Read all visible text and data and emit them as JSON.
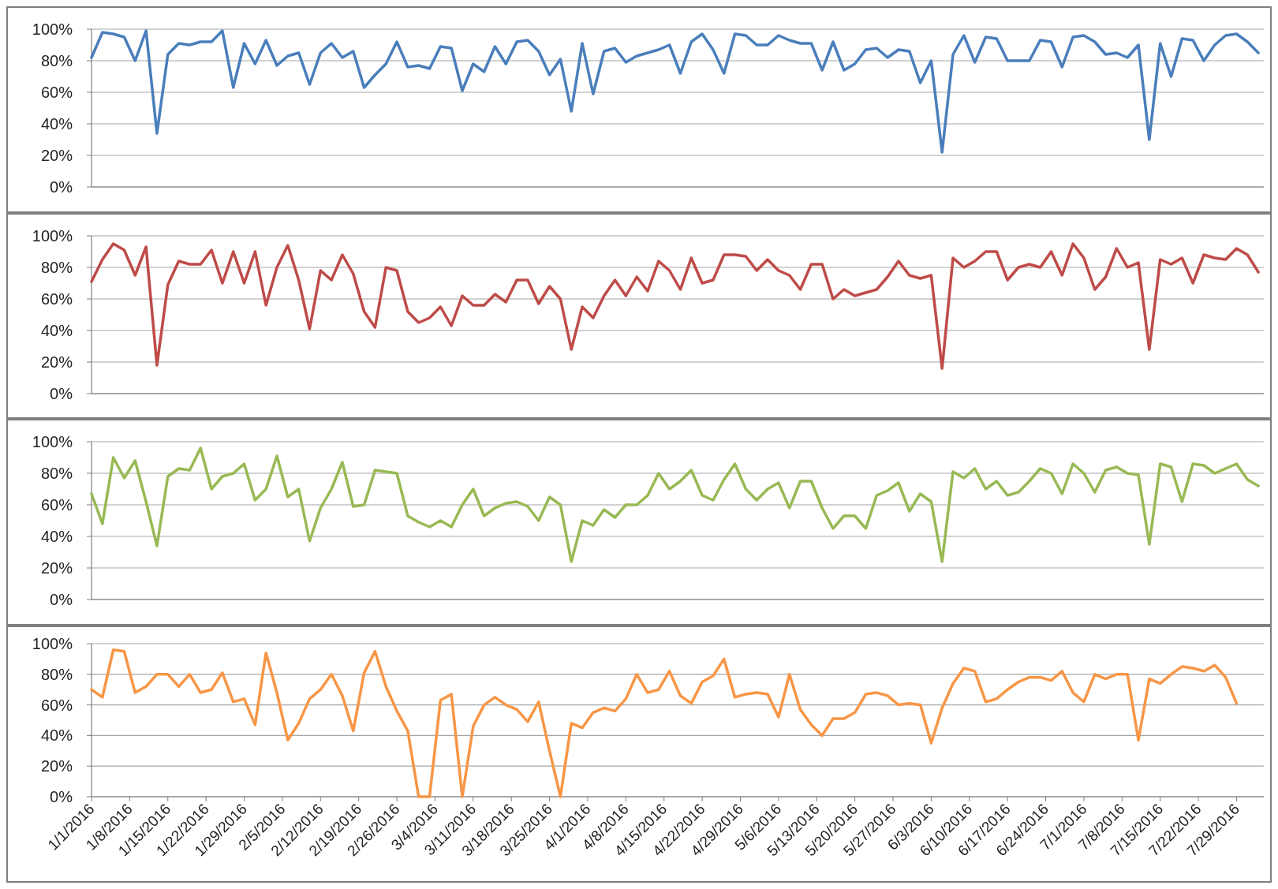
{
  "chart_data": [
    {
      "type": "line",
      "x": [
        "2016-01-01",
        "2016-01-03",
        "2016-01-05",
        "2016-01-07",
        "2016-01-09",
        "2016-01-11",
        "2016-01-13",
        "2016-01-15",
        "2016-01-17",
        "2016-01-19",
        "2016-01-21",
        "2016-01-23",
        "2016-01-25",
        "2016-01-27",
        "2016-01-29",
        "2016-01-31",
        "2016-02-02",
        "2016-02-04",
        "2016-02-06",
        "2016-02-08",
        "2016-02-10",
        "2016-02-12",
        "2016-02-14",
        "2016-02-16",
        "2016-02-18",
        "2016-02-20",
        "2016-02-22",
        "2016-02-24",
        "2016-02-26",
        "2016-02-28",
        "2016-03-01",
        "2016-03-03",
        "2016-03-05",
        "2016-03-07",
        "2016-03-09",
        "2016-03-11",
        "2016-03-13",
        "2016-03-15",
        "2016-03-17",
        "2016-03-19",
        "2016-03-21",
        "2016-03-23",
        "2016-03-25",
        "2016-03-27",
        "2016-03-29",
        "2016-03-31",
        "2016-04-02",
        "2016-04-04",
        "2016-04-06",
        "2016-04-08",
        "2016-04-10",
        "2016-04-12",
        "2016-04-14",
        "2016-04-16",
        "2016-04-18",
        "2016-04-20",
        "2016-04-22",
        "2016-04-24",
        "2016-04-26",
        "2016-04-28",
        "2016-04-30",
        "2016-05-02",
        "2016-05-04",
        "2016-05-06",
        "2016-05-08",
        "2016-05-10",
        "2016-05-12",
        "2016-05-14",
        "2016-05-16",
        "2016-05-18",
        "2016-05-20",
        "2016-05-22",
        "2016-05-24",
        "2016-05-26",
        "2016-05-28",
        "2016-05-30",
        "2016-06-01",
        "2016-06-03",
        "2016-06-05",
        "2016-06-07",
        "2016-06-09",
        "2016-06-11",
        "2016-06-13",
        "2016-06-15",
        "2016-06-17",
        "2016-06-19",
        "2016-06-21",
        "2016-06-23",
        "2016-06-25",
        "2016-06-27",
        "2016-06-29",
        "2016-07-01",
        "2016-07-03",
        "2016-07-05",
        "2016-07-07",
        "2016-07-09",
        "2016-07-11",
        "2016-07-13",
        "2016-07-15",
        "2016-07-17",
        "2016-07-19",
        "2016-07-21",
        "2016-07-23",
        "2016-07-25",
        "2016-07-27",
        "2016-07-29",
        "2016-07-31",
        "2016-08-02"
      ],
      "series": [
        {
          "color": "#4a7ebb",
          "values": [
            82,
            98,
            97,
            95,
            80,
            99,
            34,
            84,
            91,
            90,
            92,
            92,
            99,
            63,
            91,
            78,
            93,
            77,
            83,
            85,
            65,
            85,
            91,
            82,
            86,
            63,
            71,
            78,
            92,
            76,
            77,
            75,
            89,
            88,
            61,
            78,
            73,
            89,
            78,
            92,
            93,
            86,
            71,
            81,
            48,
            91,
            59,
            86,
            88,
            79,
            83,
            85,
            87,
            90,
            72,
            92,
            97,
            87,
            72,
            97,
            96,
            90,
            90,
            96,
            93,
            91,
            91,
            74,
            92,
            74,
            78,
            87,
            88,
            82,
            87,
            86,
            66,
            80,
            22,
            84,
            96,
            79,
            95,
            94,
            80,
            80,
            80,
            93,
            92,
            76,
            95,
            96,
            92,
            84,
            85,
            82,
            90,
            30,
            91,
            70,
            94,
            93,
            80,
            90,
            96,
            97,
            92,
            85
          ]
        }
      ],
      "xlim": [
        "2016-01-01",
        "2016-08-03"
      ],
      "ylim": [
        0,
        100
      ],
      "yticks": [
        {
          "value": 0,
          "label": "0%"
        },
        {
          "value": 20,
          "label": "20%"
        },
        {
          "value": 40,
          "label": "40%"
        },
        {
          "value": 60,
          "label": "60%"
        },
        {
          "value": 80,
          "label": "80%"
        },
        {
          "value": 100,
          "label": "100%"
        }
      ],
      "grid": "y",
      "tick_labels": "y"
    },
    {
      "type": "line",
      "x": [
        "2016-01-01",
        "2016-01-03",
        "2016-01-05",
        "2016-01-07",
        "2016-01-09",
        "2016-01-11",
        "2016-01-13",
        "2016-01-15",
        "2016-01-17",
        "2016-01-19",
        "2016-01-21",
        "2016-01-23",
        "2016-01-25",
        "2016-01-27",
        "2016-01-29",
        "2016-01-31",
        "2016-02-02",
        "2016-02-04",
        "2016-02-06",
        "2016-02-08",
        "2016-02-10",
        "2016-02-12",
        "2016-02-14",
        "2016-02-16",
        "2016-02-18",
        "2016-02-20",
        "2016-02-22",
        "2016-02-24",
        "2016-02-26",
        "2016-02-28",
        "2016-03-01",
        "2016-03-03",
        "2016-03-05",
        "2016-03-07",
        "2016-03-09",
        "2016-03-11",
        "2016-03-13",
        "2016-03-15",
        "2016-03-17",
        "2016-03-19",
        "2016-03-21",
        "2016-03-23",
        "2016-03-25",
        "2016-03-27",
        "2016-03-29",
        "2016-03-31",
        "2016-04-02",
        "2016-04-04",
        "2016-04-06",
        "2016-04-08",
        "2016-04-10",
        "2016-04-12",
        "2016-04-14",
        "2016-04-16",
        "2016-04-18",
        "2016-04-20",
        "2016-04-22",
        "2016-04-24",
        "2016-04-26",
        "2016-04-28",
        "2016-04-30",
        "2016-05-02",
        "2016-05-04",
        "2016-05-06",
        "2016-05-08",
        "2016-05-10",
        "2016-05-12",
        "2016-05-14",
        "2016-05-16",
        "2016-05-18",
        "2016-05-20",
        "2016-05-22",
        "2016-05-24",
        "2016-05-26",
        "2016-05-28",
        "2016-05-30",
        "2016-06-01",
        "2016-06-03",
        "2016-06-05",
        "2016-06-07",
        "2016-06-09",
        "2016-06-11",
        "2016-06-13",
        "2016-06-15",
        "2016-06-17",
        "2016-06-19",
        "2016-06-21",
        "2016-06-23",
        "2016-06-25",
        "2016-06-27",
        "2016-06-29",
        "2016-07-01",
        "2016-07-03",
        "2016-07-05",
        "2016-07-07",
        "2016-07-09",
        "2016-07-11",
        "2016-07-13",
        "2016-07-15",
        "2016-07-17",
        "2016-07-19",
        "2016-07-21",
        "2016-07-23",
        "2016-07-25",
        "2016-07-27",
        "2016-07-29",
        "2016-07-31",
        "2016-08-02"
      ],
      "series": [
        {
          "color": "#be4b48",
          "values": [
            71,
            85,
            95,
            91,
            75,
            93,
            18,
            69,
            84,
            82,
            82,
            91,
            70,
            90,
            70,
            90,
            56,
            80,
            94,
            72,
            41,
            78,
            72,
            88,
            76,
            52,
            42,
            80,
            78,
            52,
            45,
            48,
            55,
            43,
            62,
            56,
            56,
            63,
            58,
            72,
            72,
            57,
            68,
            60,
            28,
            55,
            48,
            62,
            72,
            62,
            74,
            65,
            84,
            78,
            66,
            86,
            70,
            72,
            88,
            88,
            87,
            78,
            85,
            78,
            75,
            66,
            82,
            82,
            60,
            66,
            62,
            64,
            66,
            74,
            84,
            75,
            73,
            75,
            16,
            86,
            80,
            84,
            90,
            90,
            72,
            80,
            82,
            80,
            90,
            75,
            95,
            86,
            66,
            74,
            92,
            80,
            83,
            28,
            85,
            82,
            86,
            70,
            88,
            86,
            85,
            92,
            88,
            77
          ]
        }
      ],
      "xlim": [
        "2016-01-01",
        "2016-08-03"
      ],
      "ylim": [
        0,
        100
      ],
      "yticks": [
        {
          "value": 0,
          "label": "0%"
        },
        {
          "value": 20,
          "label": "20%"
        },
        {
          "value": 40,
          "label": "40%"
        },
        {
          "value": 60,
          "label": "60%"
        },
        {
          "value": 80,
          "label": "80%"
        },
        {
          "value": 100,
          "label": "100%"
        }
      ],
      "grid": "y",
      "tick_labels": "y"
    },
    {
      "type": "line",
      "x": [
        "2016-01-01",
        "2016-01-03",
        "2016-01-05",
        "2016-01-07",
        "2016-01-09",
        "2016-01-11",
        "2016-01-13",
        "2016-01-15",
        "2016-01-17",
        "2016-01-19",
        "2016-01-21",
        "2016-01-23",
        "2016-01-25",
        "2016-01-27",
        "2016-01-29",
        "2016-01-31",
        "2016-02-02",
        "2016-02-04",
        "2016-02-06",
        "2016-02-08",
        "2016-02-10",
        "2016-02-12",
        "2016-02-14",
        "2016-02-16",
        "2016-02-18",
        "2016-02-20",
        "2016-02-22",
        "2016-02-24",
        "2016-02-26",
        "2016-02-28",
        "2016-03-01",
        "2016-03-03",
        "2016-03-05",
        "2016-03-07",
        "2016-03-09",
        "2016-03-11",
        "2016-03-13",
        "2016-03-15",
        "2016-03-17",
        "2016-03-19",
        "2016-03-21",
        "2016-03-23",
        "2016-03-25",
        "2016-03-27",
        "2016-03-29",
        "2016-03-31",
        "2016-04-02",
        "2016-04-04",
        "2016-04-06",
        "2016-04-08",
        "2016-04-10",
        "2016-04-12",
        "2016-04-14",
        "2016-04-16",
        "2016-04-18",
        "2016-04-20",
        "2016-04-22",
        "2016-04-24",
        "2016-04-26",
        "2016-04-28",
        "2016-04-30",
        "2016-05-02",
        "2016-05-04",
        "2016-05-06",
        "2016-05-08",
        "2016-05-10",
        "2016-05-12",
        "2016-05-14",
        "2016-05-16",
        "2016-05-18",
        "2016-05-20",
        "2016-05-22",
        "2016-05-24",
        "2016-05-26",
        "2016-05-28",
        "2016-05-30",
        "2016-06-01",
        "2016-06-03",
        "2016-06-05",
        "2016-06-07",
        "2016-06-09",
        "2016-06-11",
        "2016-06-13",
        "2016-06-15",
        "2016-06-17",
        "2016-06-19",
        "2016-06-21",
        "2016-06-23",
        "2016-06-25",
        "2016-06-27",
        "2016-06-29",
        "2016-07-01",
        "2016-07-03",
        "2016-07-05",
        "2016-07-07",
        "2016-07-09",
        "2016-07-11",
        "2016-07-13",
        "2016-07-15",
        "2016-07-17",
        "2016-07-19",
        "2016-07-21",
        "2016-07-23",
        "2016-07-25",
        "2016-07-27",
        "2016-07-29",
        "2016-07-31",
        "2016-08-02"
      ],
      "series": [
        {
          "color": "#98b954",
          "values": [
            67,
            48,
            90,
            77,
            88,
            62,
            34,
            78,
            83,
            82,
            96,
            70,
            78,
            80,
            86,
            63,
            70,
            91,
            65,
            70,
            37,
            58,
            70,
            87,
            59,
            60,
            82,
            81,
            80,
            53,
            49,
            46,
            50,
            46,
            60,
            70,
            53,
            58,
            61,
            62,
            59,
            50,
            65,
            60,
            24,
            50,
            47,
            57,
            52,
            60,
            60,
            66,
            80,
            70,
            75,
            82,
            66,
            63,
            76,
            86,
            70,
            63,
            70,
            74,
            58,
            75,
            75,
            58,
            45,
            53,
            53,
            45,
            66,
            69,
            74,
            56,
            67,
            62,
            24,
            81,
            77,
            83,
            70,
            75,
            66,
            68,
            75,
            83,
            80,
            67,
            86,
            80,
            68,
            82,
            84,
            80,
            79,
            35,
            86,
            84,
            62,
            86,
            85,
            80,
            83,
            86,
            76,
            72
          ]
        }
      ],
      "xlim": [
        "2016-01-01",
        "2016-08-03"
      ],
      "ylim": [
        0,
        100
      ],
      "yticks": [
        {
          "value": 0,
          "label": "0%"
        },
        {
          "value": 20,
          "label": "20%"
        },
        {
          "value": 40,
          "label": "40%"
        },
        {
          "value": 60,
          "label": "60%"
        },
        {
          "value": 80,
          "label": "80%"
        },
        {
          "value": 100,
          "label": "100%"
        }
      ],
      "grid": "y",
      "tick_labels": "y"
    },
    {
      "type": "line",
      "x": [
        "2016-01-01",
        "2016-01-03",
        "2016-01-05",
        "2016-01-07",
        "2016-01-09",
        "2016-01-11",
        "2016-01-13",
        "2016-01-15",
        "2016-01-17",
        "2016-01-19",
        "2016-01-21",
        "2016-01-23",
        "2016-01-25",
        "2016-01-27",
        "2016-01-29",
        "2016-01-31",
        "2016-02-02",
        "2016-02-04",
        "2016-02-06",
        "2016-02-08",
        "2016-02-10",
        "2016-02-12",
        "2016-02-14",
        "2016-02-16",
        "2016-02-18",
        "2016-02-20",
        "2016-02-22",
        "2016-02-24",
        "2016-02-26",
        "2016-02-28",
        "2016-03-01",
        "2016-03-03",
        "2016-03-05",
        "2016-03-07",
        "2016-03-09",
        "2016-03-11",
        "2016-03-13",
        "2016-03-15",
        "2016-03-17",
        "2016-03-19",
        "2016-03-21",
        "2016-03-23",
        "2016-03-25",
        "2016-03-27",
        "2016-03-29",
        "2016-03-31",
        "2016-04-02",
        "2016-04-04",
        "2016-04-06",
        "2016-04-08",
        "2016-04-10",
        "2016-04-12",
        "2016-04-14",
        "2016-04-16",
        "2016-04-18",
        "2016-04-20",
        "2016-04-22",
        "2016-04-24",
        "2016-04-26",
        "2016-04-28",
        "2016-04-30",
        "2016-05-02",
        "2016-05-04",
        "2016-05-06",
        "2016-05-08",
        "2016-05-10",
        "2016-05-12",
        "2016-05-14",
        "2016-05-16",
        "2016-05-18",
        "2016-05-20",
        "2016-05-22",
        "2016-05-24",
        "2016-05-26",
        "2016-05-28",
        "2016-05-30",
        "2016-06-01",
        "2016-06-03",
        "2016-06-05",
        "2016-06-07",
        "2016-06-09",
        "2016-06-11",
        "2016-06-13",
        "2016-06-15",
        "2016-06-17",
        "2016-06-19",
        "2016-06-21",
        "2016-06-23",
        "2016-06-25",
        "2016-06-27",
        "2016-06-29",
        "2016-07-01",
        "2016-07-03",
        "2016-07-05",
        "2016-07-07",
        "2016-07-09",
        "2016-07-11",
        "2016-07-13",
        "2016-07-15",
        "2016-07-17",
        "2016-07-19",
        "2016-07-21",
        "2016-07-23",
        "2016-07-25",
        "2016-07-27",
        "2016-07-29"
      ],
      "series": [
        {
          "color": "#f79646",
          "values": [
            70,
            65,
            96,
            95,
            68,
            72,
            80,
            80,
            72,
            80,
            68,
            70,
            81,
            62,
            64,
            47,
            94,
            68,
            37,
            48,
            64,
            70,
            80,
            66,
            43,
            81,
            95,
            72,
            56,
            43,
            0,
            0,
            63,
            67,
            0,
            46,
            60,
            65,
            60,
            57,
            49,
            62,
            30,
            0,
            48,
            45,
            55,
            58,
            56,
            64,
            80,
            68,
            70,
            82,
            66,
            61,
            75,
            79,
            90,
            65,
            67,
            68,
            67,
            52,
            80,
            57,
            47,
            40,
            51,
            51,
            55,
            67,
            68,
            66,
            60,
            61,
            60,
            35,
            58,
            74,
            84,
            82,
            62,
            64,
            70,
            75,
            78,
            78,
            76,
            82,
            68,
            62,
            80,
            77,
            80,
            80,
            37,
            77,
            74,
            80,
            85,
            84,
            82,
            86,
            78,
            61
          ]
        }
      ],
      "xlim": [
        "2016-01-01",
        "2016-08-03"
      ],
      "ylim": [
        0,
        100
      ],
      "xticks": [
        {
          "value": "2016-01-01",
          "label": "1/1/2016"
        },
        {
          "value": "2016-01-08",
          "label": "1/8/2016"
        },
        {
          "value": "2016-01-15",
          "label": "1/15/2016"
        },
        {
          "value": "2016-01-22",
          "label": "1/22/2016"
        },
        {
          "value": "2016-01-29",
          "label": "1/29/2016"
        },
        {
          "value": "2016-02-05",
          "label": "2/5/2016"
        },
        {
          "value": "2016-02-12",
          "label": "2/12/2016"
        },
        {
          "value": "2016-02-19",
          "label": "2/19/2016"
        },
        {
          "value": "2016-02-26",
          "label": "2/26/2016"
        },
        {
          "value": "2016-03-04",
          "label": "3/4/2016"
        },
        {
          "value": "2016-03-11",
          "label": "3/11/2016"
        },
        {
          "value": "2016-03-18",
          "label": "3/18/2016"
        },
        {
          "value": "2016-03-25",
          "label": "3/25/2016"
        },
        {
          "value": "2016-04-01",
          "label": "4/1/2016"
        },
        {
          "value": "2016-04-08",
          "label": "4/8/2016"
        },
        {
          "value": "2016-04-15",
          "label": "4/15/2016"
        },
        {
          "value": "2016-04-22",
          "label": "4/22/2016"
        },
        {
          "value": "2016-04-29",
          "label": "4/29/2016"
        },
        {
          "value": "2016-05-06",
          "label": "5/6/2016"
        },
        {
          "value": "2016-05-13",
          "label": "5/13/2016"
        },
        {
          "value": "2016-05-20",
          "label": "5/20/2016"
        },
        {
          "value": "2016-05-27",
          "label": "5/27/2016"
        },
        {
          "value": "2016-06-03",
          "label": "6/3/2016"
        },
        {
          "value": "2016-06-10",
          "label": "6/10/2016"
        },
        {
          "value": "2016-06-17",
          "label": "6/17/2016"
        },
        {
          "value": "2016-06-24",
          "label": "6/24/2016"
        },
        {
          "value": "2016-07-01",
          "label": "7/1/2016"
        },
        {
          "value": "2016-07-08",
          "label": "7/8/2016"
        },
        {
          "value": "2016-07-15",
          "label": "7/15/2016"
        },
        {
          "value": "2016-07-22",
          "label": "7/22/2016"
        },
        {
          "value": "2016-07-29",
          "label": "7/29/2016"
        }
      ],
      "yticks": [
        {
          "value": 0,
          "label": "0%"
        },
        {
          "value": 20,
          "label": "20%"
        },
        {
          "value": 40,
          "label": "40%"
        },
        {
          "value": 60,
          "label": "60%"
        },
        {
          "value": 80,
          "label": "80%"
        },
        {
          "value": 100,
          "label": "100%"
        }
      ],
      "grid": "y"
    }
  ]
}
